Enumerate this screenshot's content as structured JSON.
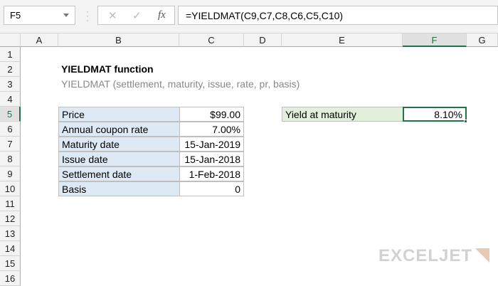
{
  "name_box": "F5",
  "formula": "=YIELDMAT(C9,C7,C8,C6,C5,C10)",
  "columns": [
    "A",
    "B",
    "C",
    "D",
    "E",
    "F",
    "G"
  ],
  "rows": [
    "1",
    "2",
    "3",
    "4",
    "5",
    "6",
    "7",
    "8",
    "9",
    "10",
    "11",
    "12",
    "13",
    "14",
    "15",
    "16"
  ],
  "title": "YIELDMAT function",
  "subtitle": "YIELDMAT (settlement, maturity, issue, rate, pr, basis)",
  "inputs": [
    {
      "label": "Price",
      "value": "$99.00"
    },
    {
      "label": "Annual coupon rate",
      "value": "7.00%"
    },
    {
      "label": "Maturity date",
      "value": "15-Jan-2019"
    },
    {
      "label": "Issue date",
      "value": "15-Jan-2018"
    },
    {
      "label": "Settlement date",
      "value": "1-Feb-2018"
    },
    {
      "label": "Basis",
      "value": "0"
    }
  ],
  "result": {
    "label": "Yield at maturity",
    "value": "8.10%"
  },
  "logo": "EXCELJET",
  "colors": {
    "accent": "#217346",
    "input_label_bg": "#dde9f5",
    "result_label_bg": "#e2efda"
  }
}
